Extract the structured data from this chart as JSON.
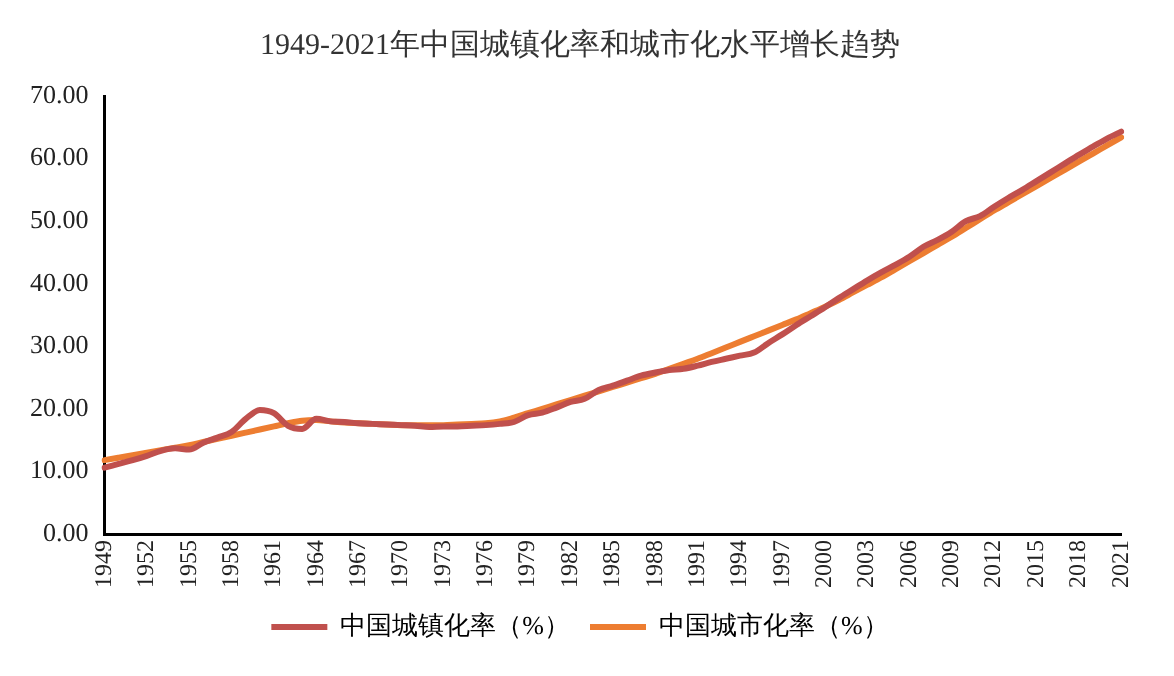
{
  "chart_data": {
    "type": "line",
    "title": "1949-2021年中国城镇化率和城市化水平增长趋势",
    "categories": [
      "1949",
      null,
      null,
      "1952",
      null,
      null,
      "1955",
      null,
      null,
      "1958",
      null,
      null,
      "1961",
      null,
      null,
      "1964",
      null,
      null,
      "1967",
      null,
      null,
      "1970",
      null,
      null,
      "1973",
      null,
      null,
      "1976",
      null,
      null,
      "1979",
      null,
      null,
      "1982",
      null,
      null,
      "1985",
      null,
      null,
      "1988",
      null,
      null,
      "1991",
      null,
      null,
      "1994",
      null,
      null,
      "1997",
      null,
      null,
      "2000",
      null,
      null,
      "2003",
      null,
      null,
      "2006",
      null,
      null,
      "2009",
      null,
      null,
      "2012",
      null,
      null,
      "2015",
      null,
      null,
      "2018",
      null,
      null,
      "2021"
    ],
    "series": [
      {
        "name": "中国城镇化率（%）",
        "color": "#c0504d",
        "values": [
          10.6,
          11.2,
          11.8,
          12.5,
          13.3,
          13.7,
          13.5,
          14.6,
          15.4,
          16.3,
          18.4,
          19.8,
          19.3,
          17.3,
          16.8,
          18.4,
          18.0,
          17.9,
          17.7,
          17.6,
          17.5,
          17.4,
          17.3,
          17.1,
          17.2,
          17.2,
          17.3,
          17.4,
          17.6,
          17.9,
          19.0,
          19.4,
          20.2,
          21.1,
          21.6,
          23.0,
          23.7,
          24.5,
          25.3,
          25.8,
          26.2,
          26.4,
          26.9,
          27.5,
          28.0,
          28.5,
          29.0,
          30.5,
          31.9,
          33.4,
          34.8,
          36.2,
          37.7,
          39.1,
          40.5,
          41.8,
          43.0,
          44.3,
          45.9,
          47.0,
          48.3,
          50.0,
          50.8,
          52.3,
          53.7,
          55.0,
          56.4,
          57.8,
          59.2,
          60.6,
          61.9,
          63.2,
          64.3
        ]
      },
      {
        "name": "中国城市化率（%）",
        "color": "#ed7d31",
        "values": [
          11.8,
          12.2,
          12.6,
          13.0,
          13.4,
          13.8,
          14.2,
          14.7,
          15.2,
          15.7,
          16.2,
          16.7,
          17.2,
          17.7,
          18.1,
          18.2,
          18.0,
          17.8,
          17.7,
          17.6,
          17.5,
          17.4,
          17.4,
          17.4,
          17.4,
          17.5,
          17.6,
          17.7,
          18.0,
          18.6,
          19.3,
          20.0,
          20.7,
          21.4,
          22.1,
          22.8,
          23.5,
          24.2,
          24.9,
          25.6,
          26.4,
          27.2,
          28.0,
          28.9,
          29.8,
          30.7,
          31.6,
          32.5,
          33.4,
          34.3,
          35.3,
          36.3,
          37.4,
          38.6,
          39.8,
          41.0,
          42.3,
          43.6,
          44.9,
          46.2,
          47.5,
          48.9,
          50.3,
          51.7,
          53.0,
          54.3,
          55.6,
          56.9,
          58.2,
          59.5,
          60.8,
          62.1,
          63.4
        ]
      }
    ],
    "ylim": [
      0,
      70
    ],
    "yticks": [
      {
        "value": 0,
        "label": "0.00"
      },
      {
        "value": 10,
        "label": "10.00"
      },
      {
        "value": 20,
        "label": "20.00"
      },
      {
        "value": 30,
        "label": "30.00"
      },
      {
        "value": 40,
        "label": "40.00"
      },
      {
        "value": 50,
        "label": "50.00"
      },
      {
        "value": 60,
        "label": "60.00"
      },
      {
        "value": 70,
        "label": "70.00"
      }
    ],
    "grid": false,
    "legend": "bottom",
    "marker": "none",
    "line_style": "solid"
  }
}
